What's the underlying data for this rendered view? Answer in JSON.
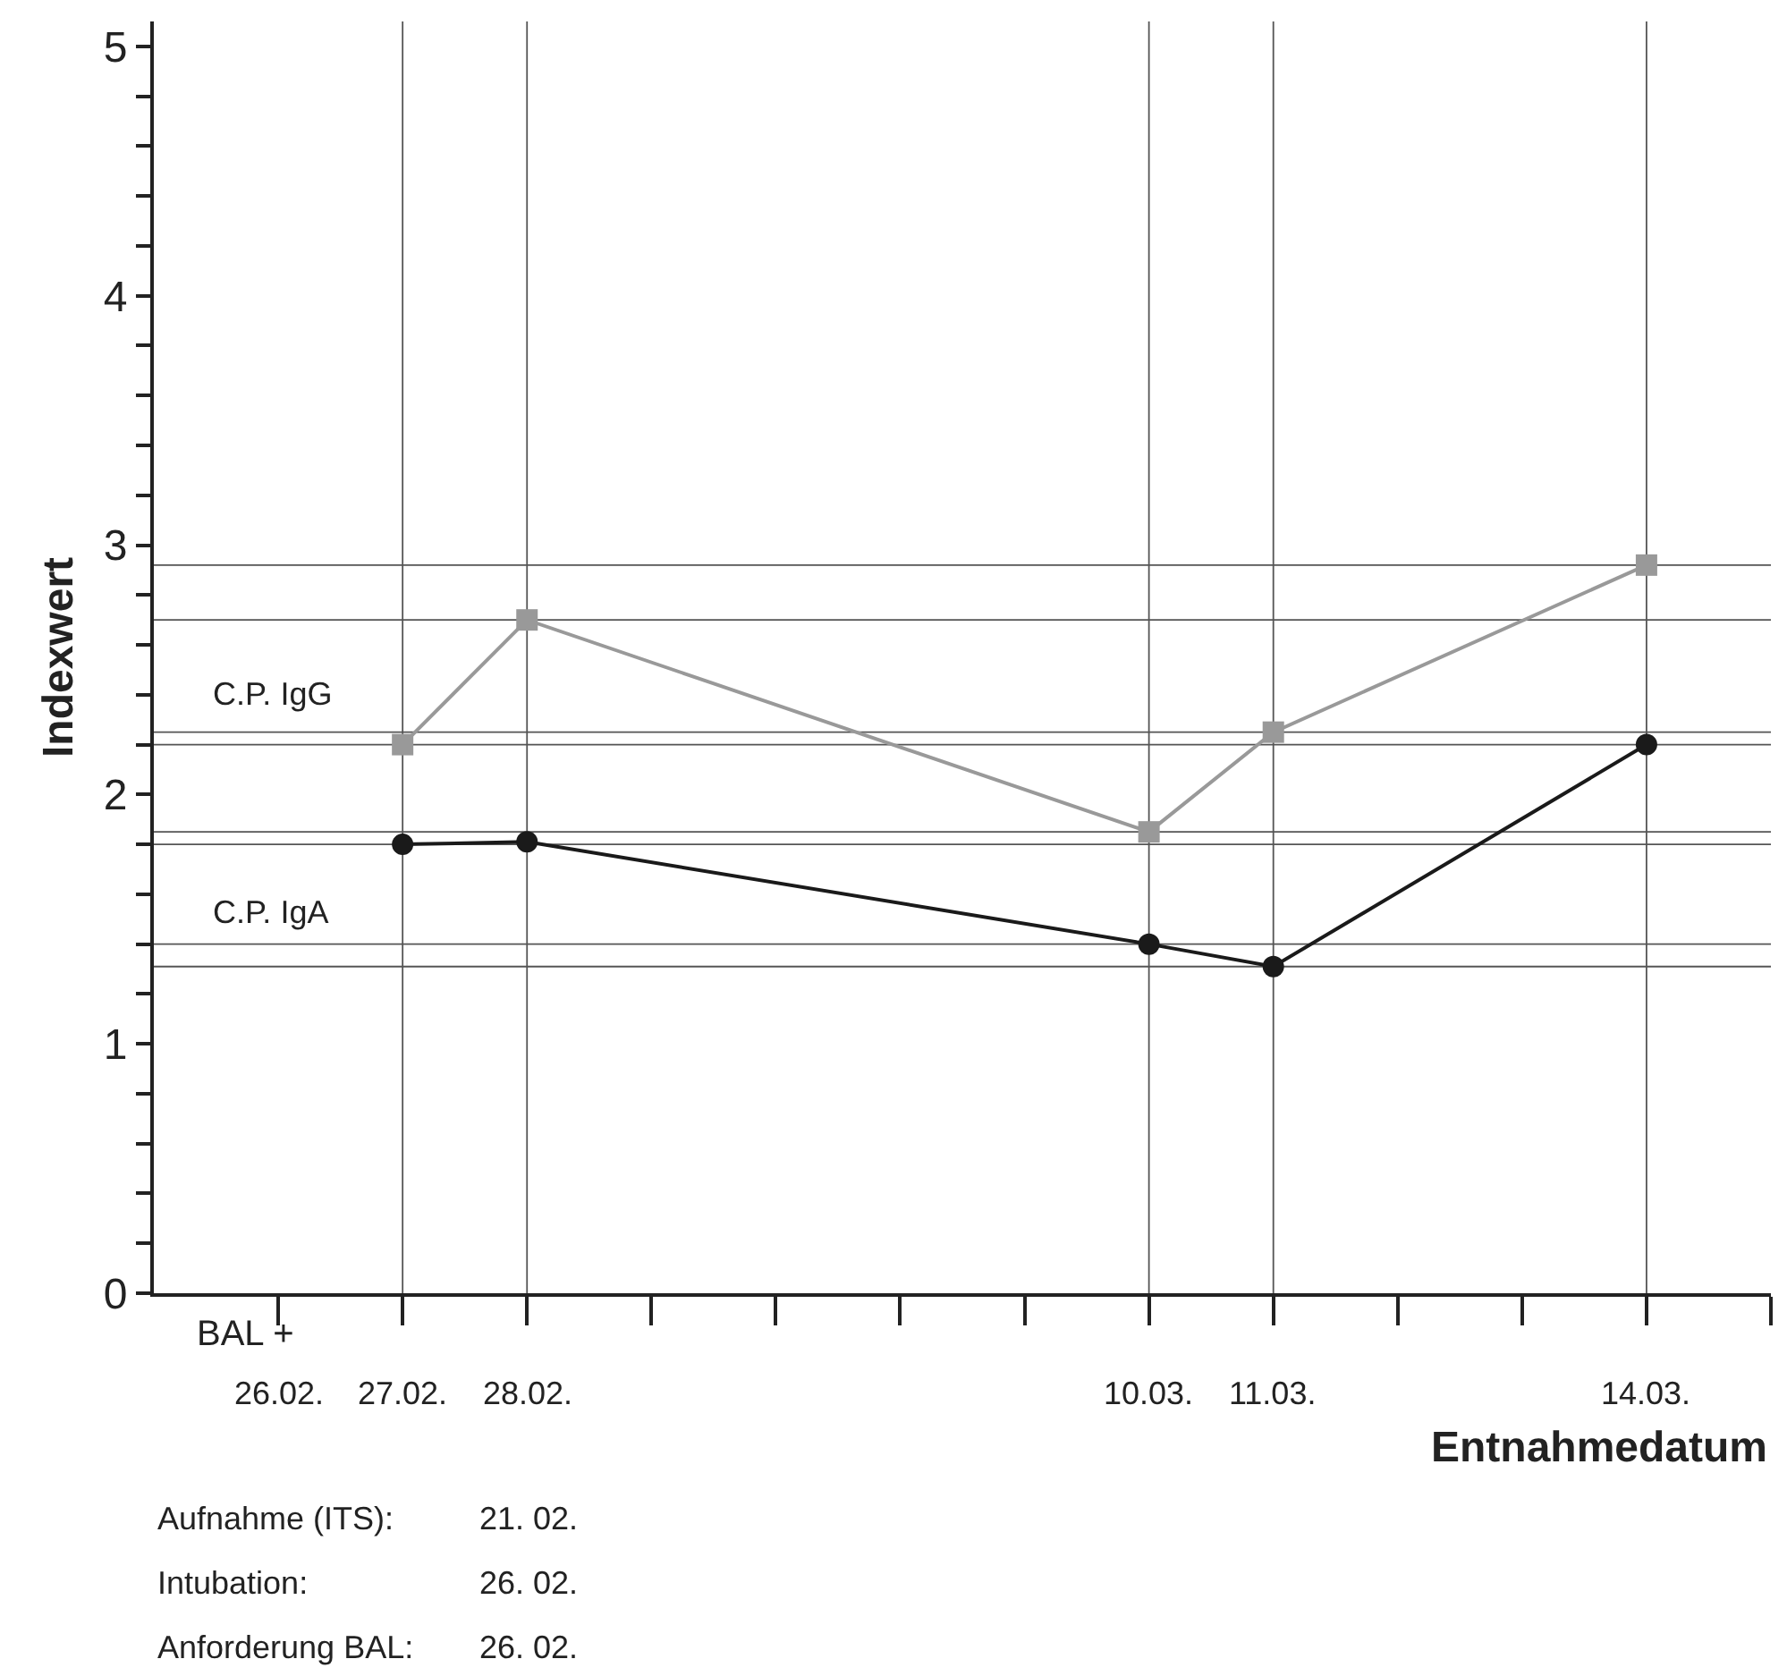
{
  "chart_data": {
    "type": "line",
    "xlabel": "Entnahmedatum",
    "ylabel": "Indexwert",
    "categories": [
      "26.02.",
      "27.02.",
      "28.02.",
      null,
      null,
      null,
      null,
      "10.03.",
      "11.03.",
      null,
      null,
      "14.03.",
      null
    ],
    "series": [
      {
        "name": "C.P. IgG",
        "color": "#999999",
        "marker": "square",
        "values": [
          null,
          2.2,
          2.7,
          null,
          null,
          null,
          null,
          1.85,
          2.25,
          null,
          null,
          2.92,
          null
        ]
      },
      {
        "name": "C.P. IgA",
        "color": "#1a1a1a",
        "marker": "circle",
        "values": [
          null,
          1.8,
          1.81,
          null,
          null,
          null,
          null,
          1.4,
          1.31,
          null,
          null,
          2.2,
          null
        ]
      }
    ],
    "ylim": [
      0,
      5.1
    ],
    "yticks": [
      0,
      {
        "value": 0.2,
        "label": null
      },
      {
        "value": 0.4,
        "label": null
      },
      {
        "value": 0.6,
        "label": null
      },
      {
        "value": 0.8,
        "label": null
      },
      1,
      {
        "value": 1.2,
        "label": null
      },
      {
        "value": 1.4,
        "label": null
      },
      {
        "value": 1.6,
        "label": null
      },
      {
        "value": 1.8,
        "label": null
      },
      2,
      {
        "value": 2.2,
        "label": null
      },
      {
        "value": 2.4,
        "label": null
      },
      {
        "value": 2.6,
        "label": null
      },
      {
        "value": 2.8,
        "label": null
      },
      3,
      {
        "value": 3.2,
        "label": null
      },
      {
        "value": 3.4,
        "label": null
      },
      {
        "value": 3.6,
        "label": null
      },
      {
        "value": 3.8,
        "label": null
      },
      4,
      {
        "value": 4.2,
        "label": null
      },
      {
        "value": 4.4,
        "label": null
      },
      {
        "value": 4.6,
        "label": null
      },
      {
        "value": 4.8,
        "label": null
      },
      5
    ],
    "ref_lines": [
      {
        "axis": "x",
        "value": "27.02.",
        "color": "#555555"
      },
      {
        "axis": "x",
        "value": "28.02.",
        "color": "#555555"
      },
      {
        "axis": "x",
        "value": "10.03.",
        "color": "#555555"
      },
      {
        "axis": "x",
        "value": "11.03.",
        "color": "#555555"
      },
      {
        "axis": "x",
        "value": "14.03.",
        "color": "#555555"
      },
      {
        "axis": "y",
        "value": 2.92,
        "color": "#555555"
      },
      {
        "axis": "y",
        "value": 2.7,
        "color": "#555555"
      },
      {
        "axis": "y",
        "value": 2.25,
        "color": "#555555"
      },
      {
        "axis": "y",
        "value": 2.2,
        "color": "#555555"
      },
      {
        "axis": "y",
        "value": 1.85,
        "color": "#555555"
      },
      {
        "axis": "y",
        "value": 1.8,
        "color": "#555555"
      },
      {
        "axis": "y",
        "value": 1.4,
        "color": "#555555"
      },
      {
        "axis": "y",
        "value": 1.31,
        "color": "#555555"
      }
    ],
    "annotations": [
      "BAL +",
      "Aufnahme (ITS):\t21. 02.",
      "Intubation:\t26. 02.",
      "Anforderung BAL:\t26. 02."
    ],
    "grid": false,
    "legend": false
  }
}
